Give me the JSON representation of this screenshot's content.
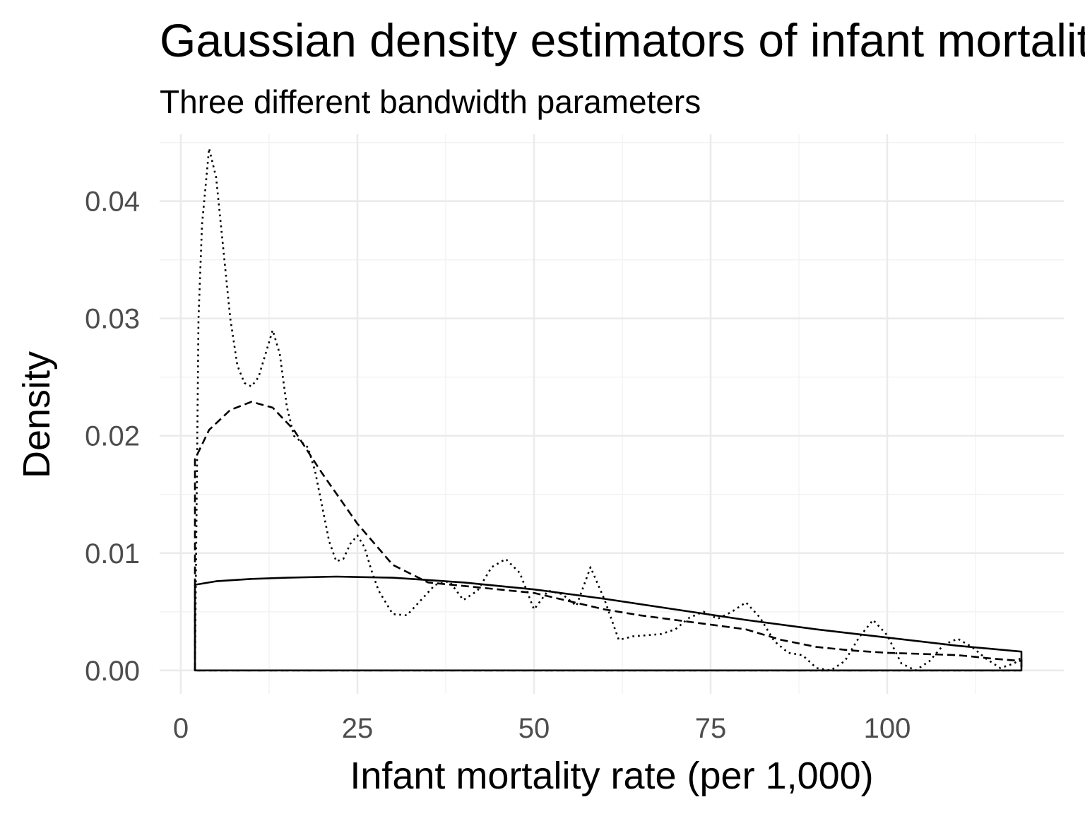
{
  "chart_data": {
    "type": "line",
    "title": "Gaussian density estimators of infant mortality",
    "subtitle": "Three different bandwidth parameters",
    "xlabel": "Infant mortality rate (per 1,000)",
    "ylabel": "Density",
    "xlim": [
      -3,
      125
    ],
    "ylim": [
      -0.002,
      0.0457
    ],
    "x_ticks": [
      {
        "value": 0,
        "label": "0"
      },
      {
        "value": 25,
        "label": "25"
      },
      {
        "value": 50,
        "label": "50"
      },
      {
        "value": 75,
        "label": "75"
      },
      {
        "value": 100,
        "label": "100"
      }
    ],
    "y_ticks": [
      {
        "value": 0,
        "label": "0.00"
      },
      {
        "value": 0.01,
        "label": "0.01"
      },
      {
        "value": 0.02,
        "label": "0.02"
      },
      {
        "value": 0.03,
        "label": "0.03"
      },
      {
        "value": 0.04,
        "label": "0.04"
      }
    ],
    "grid": true,
    "legend": "none",
    "series": [
      {
        "line_style": "solid",
        "x": [
          2,
          5,
          10,
          15,
          22,
          30,
          40,
          50,
          60,
          70,
          80,
          90,
          100,
          110,
          119
        ],
        "y": [
          0.0073,
          0.0076,
          0.0078,
          0.0079,
          0.008,
          0.0079,
          0.0075,
          0.0069,
          0.0061,
          0.0052,
          0.0043,
          0.0035,
          0.0028,
          0.0021,
          0.0016
        ]
      },
      {
        "line_style": "dashed",
        "x": [
          2,
          4,
          7,
          10,
          13,
          16,
          20,
          25,
          30,
          35,
          40,
          45,
          50,
          55,
          60,
          65,
          70,
          75,
          80,
          85,
          90,
          95,
          100,
          105,
          110,
          115,
          119
        ],
        "y": [
          0.018,
          0.0205,
          0.0222,
          0.0229,
          0.0224,
          0.0205,
          0.0168,
          0.0125,
          0.009,
          0.0075,
          0.0072,
          0.0069,
          0.0066,
          0.0059,
          0.0052,
          0.0047,
          0.0043,
          0.0039,
          0.0035,
          0.0026,
          0.002,
          0.0017,
          0.0015,
          0.0014,
          0.0013,
          0.001,
          0.0008
        ]
      },
      {
        "line_style": "dotted",
        "x": [
          2,
          2.5,
          3,
          4,
          5,
          6,
          7,
          8,
          9,
          10,
          11,
          12,
          13,
          14,
          15,
          16,
          17,
          18,
          19,
          20,
          21,
          22,
          23,
          24,
          25,
          26,
          27,
          28,
          30,
          32,
          34,
          36,
          38,
          40,
          42,
          44,
          46,
          48,
          50,
          52,
          54,
          56,
          58,
          60,
          62,
          64,
          66,
          68,
          70,
          72,
          74,
          76,
          78,
          80,
          82,
          84,
          86,
          88,
          90,
          92,
          94,
          96,
          98,
          100,
          102,
          104,
          106,
          108,
          110,
          112,
          114,
          116,
          118,
          119
        ],
        "y": [
          0.0,
          0.03,
          0.038,
          0.0445,
          0.042,
          0.036,
          0.03,
          0.026,
          0.0245,
          0.0242,
          0.025,
          0.027,
          0.029,
          0.027,
          0.0225,
          0.02,
          0.0195,
          0.019,
          0.017,
          0.014,
          0.011,
          0.0093,
          0.0095,
          0.0108,
          0.0115,
          0.0105,
          0.0085,
          0.0068,
          0.0048,
          0.0047,
          0.006,
          0.0073,
          0.0076,
          0.006,
          0.0068,
          0.0088,
          0.0095,
          0.0083,
          0.0052,
          0.0068,
          0.0065,
          0.0055,
          0.0088,
          0.006,
          0.0026,
          0.0029,
          0.003,
          0.0031,
          0.0035,
          0.0045,
          0.005,
          0.0044,
          0.005,
          0.0058,
          0.0045,
          0.0025,
          0.0015,
          0.0013,
          0.0002,
          0.0,
          0.0008,
          0.0028,
          0.0043,
          0.003,
          0.0006,
          0.0,
          0.0008,
          0.0022,
          0.0027,
          0.002,
          0.001,
          0.0002,
          0.0006,
          0.0011
        ]
      }
    ]
  }
}
